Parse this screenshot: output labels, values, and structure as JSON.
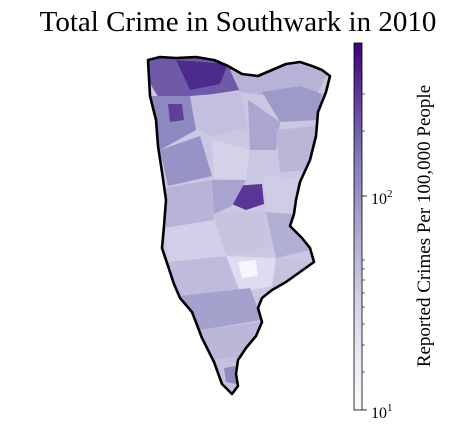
{
  "title": "Total Crime in Southwark in 2010",
  "colorbar": {
    "label": "Reported Crimes Per 100,000 People",
    "scale": "log",
    "range": [
      10,
      300
    ],
    "ticks": [
      {
        "base": "10",
        "exp": "1",
        "value": 10
      },
      {
        "base": "10",
        "exp": "2",
        "value": 100
      }
    ],
    "colormap": [
      "#fcfbfd",
      "#efedf5",
      "#dadaeb",
      "#bcbddc",
      "#9e9ac8",
      "#807dba",
      "#6a51a3",
      "#54278f",
      "#3f007d"
    ]
  },
  "map": {
    "region": "Southwark",
    "outline_color": "#000000"
  }
}
